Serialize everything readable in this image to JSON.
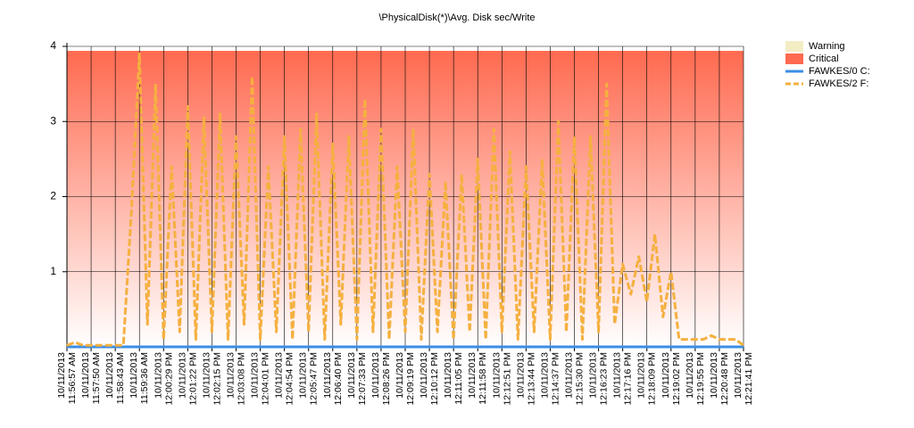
{
  "chart_data": {
    "type": "line",
    "title": "\\PhysicalDisk(*)\\Avg. Disk sec/Write",
    "categories": [
      "10/11/2013 11:56:57 AM",
      null,
      null,
      "10/11/2013 11:57:50 AM",
      null,
      null,
      "10/11/2013 11:58:43 AM",
      null,
      null,
      "10/11/2013 11:59:36 AM",
      null,
      null,
      "10/11/2013 12:00:29 PM",
      null,
      null,
      "10/11/2013 12:01:22 PM",
      null,
      null,
      "10/11/2013 12:02:15 PM",
      null,
      null,
      "10/11/2013 12:03:08 PM",
      null,
      null,
      "10/11/2013 12:04:01 PM",
      null,
      null,
      "10/11/2013 12:04:54 PM",
      null,
      null,
      "10/11/2013 12:05:47 PM",
      null,
      null,
      "10/11/2013 12:06:40 PM",
      null,
      null,
      "10/11/2013 12:07:33 PM",
      null,
      null,
      "10/11/2013 12:08:26 PM",
      null,
      null,
      "10/11/2013 12:09:19 PM",
      null,
      null,
      "10/11/2013 12:10:12 PM",
      null,
      null,
      "10/11/2013 12:11:05 PM",
      null,
      null,
      "10/11/2013 12:11:58 PM",
      null,
      null,
      "10/11/2013 12:12:51 PM",
      null,
      null,
      "10/11/2013 12:13:44 PM",
      null,
      null,
      "10/11/2013 12:14:37 PM",
      null,
      null,
      "10/11/2013 12:15:30 PM",
      null,
      null,
      "10/11/2013 12:16:23 PM",
      null,
      null,
      "10/11/2013 12:17:16 PM",
      null,
      null,
      "10/11/2013 12:18:09 PM",
      null,
      null,
      "10/11/2013 12:19:02 PM",
      null,
      null,
      "10/11/2013 12:19:55 PM",
      null,
      null,
      "10/11/2013 12:20:48 PM",
      null,
      null,
      "10/11/2013 12:21:41 PM"
    ],
    "thresholds": [
      {
        "name": "Warning",
        "color": "#f3edc4"
      },
      {
        "name": "Critical",
        "color": "#ff6a50",
        "value": 3.94
      }
    ],
    "series": [
      {
        "name": "FAWKES/0 C:",
        "color": "#3a8ee6",
        "values": [
          0,
          0,
          0,
          0,
          0,
          0,
          0,
          0,
          0,
          0,
          0,
          0,
          0,
          0,
          0,
          0,
          0,
          0,
          0,
          0,
          0,
          0,
          0,
          0,
          0,
          0,
          0,
          0,
          0,
          0,
          0,
          0,
          0,
          0,
          0,
          0,
          0,
          0,
          0,
          0,
          0,
          0,
          0,
          0,
          0,
          0,
          0,
          0,
          0,
          0,
          0,
          0,
          0,
          0,
          0,
          0,
          0,
          0,
          0,
          0,
          0,
          0,
          0,
          0,
          0,
          0,
          0,
          0,
          0,
          0,
          0,
          0,
          0,
          0,
          0,
          0,
          0,
          0,
          0,
          0,
          0,
          0,
          0,
          0,
          0
        ]
      },
      {
        "name": "FAWKES/2 F:",
        "color": "#f5b040",
        "dashed": true,
        "values": [
          0.02,
          0.06,
          0.02,
          0.02,
          0.02,
          0.02,
          0.02,
          0.02,
          1.8,
          3.9,
          0.3,
          3.5,
          0.1,
          2.4,
          0.2,
          3.2,
          0.1,
          3.05,
          0.2,
          3.1,
          0.1,
          2.8,
          0.3,
          3.6,
          0.1,
          2.4,
          0.2,
          2.8,
          0.1,
          2.9,
          0.2,
          3.1,
          0.1,
          2.7,
          0.3,
          2.8,
          0.1,
          3.3,
          0.2,
          2.9,
          0.1,
          2.4,
          0.2,
          2.9,
          0.1,
          2.3,
          0.2,
          2.2,
          0.1,
          2.3,
          0.2,
          2.5,
          0.1,
          2.9,
          0.2,
          2.6,
          0.1,
          2.4,
          0.2,
          2.5,
          0.1,
          3.0,
          0.2,
          2.8,
          0.1,
          2.8,
          0.2,
          3.5,
          0.3,
          1.1,
          0.7,
          1.2,
          0.6,
          1.5,
          0.4,
          1.0,
          0.1,
          0.1,
          0.1,
          0.1,
          0.15,
          0.1,
          0.1,
          0.1,
          0.02
        ]
      }
    ],
    "ylim": [
      0,
      4
    ],
    "yticks": [
      1,
      2,
      3,
      4
    ],
    "grid": true
  }
}
